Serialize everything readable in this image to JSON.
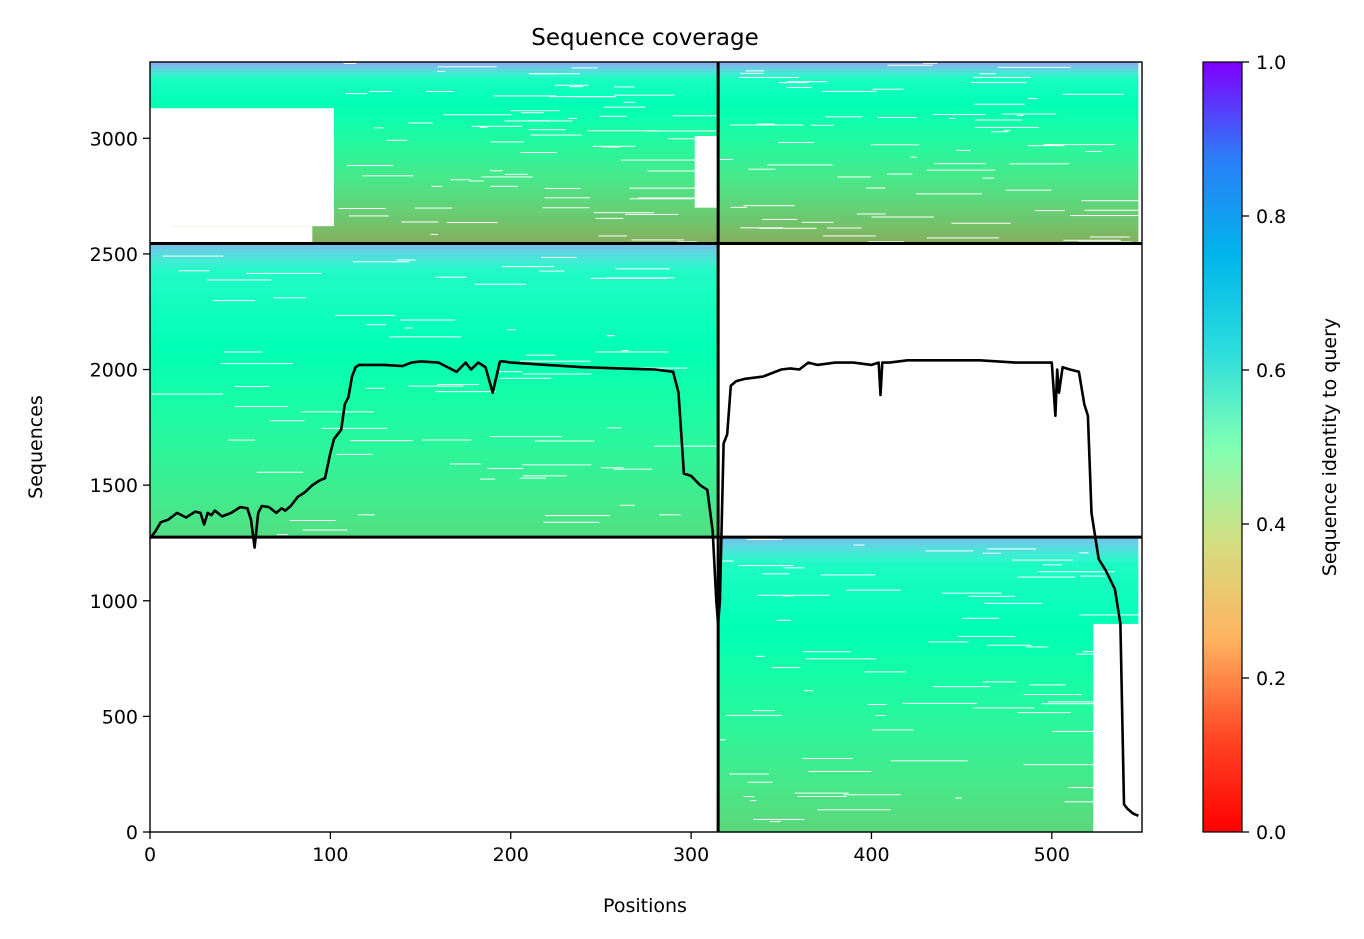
{
  "chart_data": {
    "type": "heatmap",
    "title": "Sequence coverage",
    "xlabel": "Positions",
    "ylabel": "Sequences",
    "xlim": [
      0,
      550
    ],
    "ylim": [
      0,
      3330
    ],
    "xticks": [
      0,
      100,
      200,
      300,
      400,
      500
    ],
    "yticks": [
      0,
      500,
      1000,
      1500,
      2000,
      2500,
      3000
    ],
    "grid": false,
    "colorbar": {
      "label": "Sequence identity to query",
      "range": [
        0.0,
        1.0
      ],
      "ticks": [
        0.0,
        0.2,
        0.4,
        0.6,
        0.8,
        1.0
      ],
      "tick_labels": [
        "0.0",
        "0.2",
        "0.4",
        "0.6",
        "0.8",
        "1.0"
      ],
      "colormap": "rainbow_r"
    },
    "block_boundaries": {
      "x_split": 315,
      "y_splits": [
        1275,
        2545
      ]
    },
    "blocks": [
      {
        "x": [
          315,
          548
        ],
        "y": [
          0,
          1275
        ],
        "identity_bottom": 0.32,
        "identity_top": 0.75
      },
      {
        "x": [
          0,
          315
        ],
        "y": [
          1275,
          2545
        ],
        "identity_bottom": 0.34,
        "identity_top": 0.75
      },
      {
        "x": [
          0,
          315
        ],
        "y": [
          2545,
          3330
        ],
        "identity_bottom": 0.24,
        "identity_top": 0.8
      },
      {
        "x": [
          315,
          548
        ],
        "y": [
          2545,
          3330
        ],
        "identity_bottom": 0.24,
        "identity_top": 0.8
      }
    ],
    "coverage_line": {
      "x": [
        0,
        3,
        6,
        10,
        15,
        20,
        25,
        28,
        30,
        32,
        34,
        36,
        40,
        45,
        50,
        54,
        56,
        58,
        60,
        62,
        66,
        70,
        73,
        75,
        78,
        82,
        86,
        90,
        94,
        97,
        100,
        102,
        104,
        106,
        108,
        110,
        112,
        114,
        116,
        120,
        130,
        140,
        145,
        150,
        160,
        170,
        175,
        178,
        182,
        186,
        190,
        194,
        196,
        200,
        220,
        240,
        260,
        280,
        290,
        293,
        296,
        300,
        305,
        309,
        312,
        314,
        315,
        316,
        318,
        320,
        322,
        325,
        330,
        340,
        350,
        355,
        360,
        365,
        370,
        380,
        390,
        400,
        404,
        405,
        406,
        410,
        420,
        440,
        460,
        480,
        500,
        502,
        503,
        504,
        506,
        510,
        515,
        518,
        520,
        522,
        524,
        526,
        530,
        535,
        538,
        540,
        542,
        545,
        548
      ],
      "y": [
        1270,
        1300,
        1340,
        1350,
        1380,
        1360,
        1385,
        1380,
        1330,
        1380,
        1370,
        1390,
        1365,
        1380,
        1405,
        1400,
        1350,
        1230,
        1380,
        1410,
        1405,
        1380,
        1400,
        1390,
        1410,
        1450,
        1470,
        1500,
        1520,
        1530,
        1640,
        1700,
        1720,
        1740,
        1850,
        1880,
        1970,
        2010,
        2020,
        2020,
        2020,
        2015,
        2030,
        2035,
        2030,
        1990,
        2030,
        2000,
        2030,
        2010,
        1900,
        2035,
        2035,
        2030,
        2020,
        2010,
        2005,
        2000,
        1990,
        1900,
        1550,
        1540,
        1500,
        1480,
        1300,
        1000,
        900,
        1000,
        1680,
        1720,
        1930,
        1950,
        1960,
        1970,
        2000,
        2005,
        2000,
        2030,
        2020,
        2030,
        2030,
        2020,
        2030,
        1890,
        2030,
        2030,
        2040,
        2040,
        2040,
        2030,
        2030,
        1800,
        2000,
        1900,
        2010,
        2000,
        1990,
        1850,
        1800,
        1380,
        1280,
        1180,
        1130,
        1050,
        900,
        120,
        100,
        80,
        70
      ]
    }
  }
}
